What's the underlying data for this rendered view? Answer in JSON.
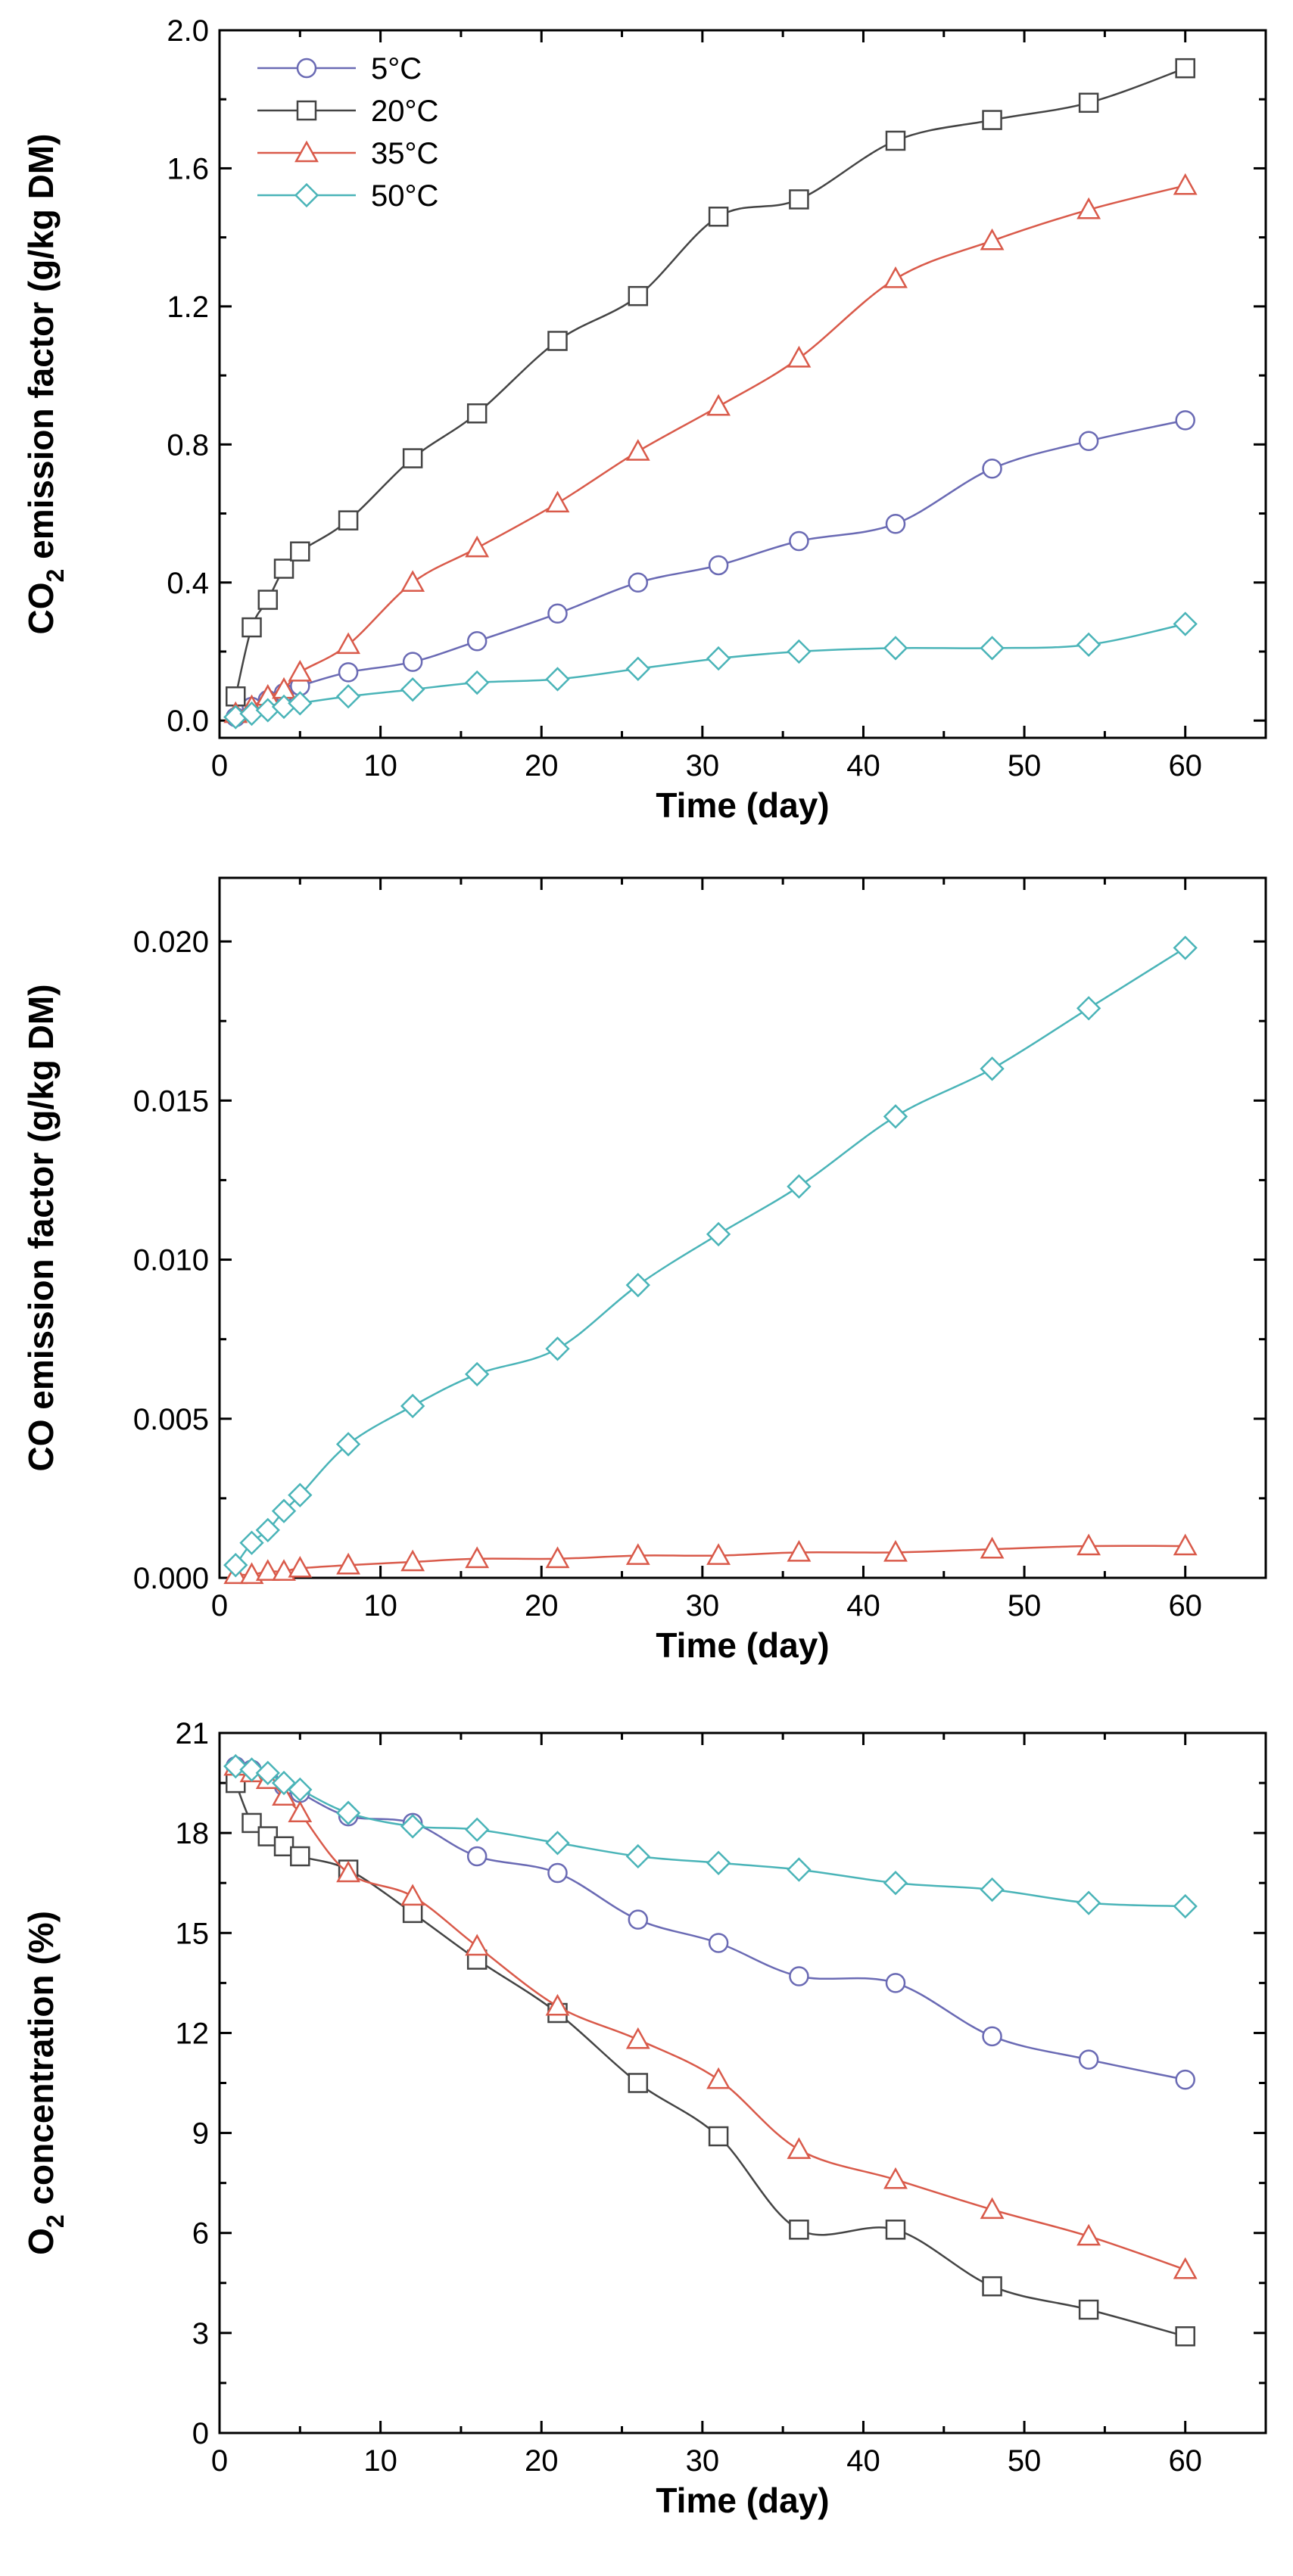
{
  "colors": {
    "5C": "#6a6ab4",
    "20C": "#444444",
    "35C": "#d95a4a",
    "50C": "#4ab4b8"
  },
  "chart_data": [
    {
      "type": "line",
      "xlabel": "Time (day)",
      "ylabel": "CO2 emission factor (g/kg DM)",
      "xlim": [
        0,
        65
      ],
      "ylim": [
        -0.05,
        2.0
      ],
      "xticks": [
        0,
        10,
        20,
        30,
        40,
        50,
        60
      ],
      "yticks": [
        0.0,
        0.4,
        0.8,
        1.2,
        1.6,
        2.0
      ],
      "ytick_labels": [
        "0.0",
        "0.4",
        "0.8",
        "1.2",
        "1.6",
        "2.0"
      ],
      "legend_position": "top-left",
      "series": [
        {
          "name": "5°C",
          "color_key": "5C",
          "marker": "circle",
          "x": [
            1,
            2,
            3,
            4,
            5,
            8,
            12,
            16,
            21,
            26,
            31,
            36,
            42,
            48,
            54,
            60
          ],
          "y": [
            0.01,
            0.04,
            0.06,
            0.08,
            0.1,
            0.14,
            0.17,
            0.23,
            0.31,
            0.4,
            0.45,
            0.52,
            0.57,
            0.73,
            0.81,
            0.87
          ]
        },
        {
          "name": "20°C",
          "color_key": "20C",
          "marker": "square",
          "x": [
            1,
            2,
            3,
            4,
            5,
            8,
            12,
            16,
            21,
            26,
            31,
            36,
            42,
            48,
            54,
            60
          ],
          "y": [
            0.07,
            0.27,
            0.35,
            0.44,
            0.49,
            0.58,
            0.76,
            0.89,
            1.1,
            1.23,
            1.46,
            1.51,
            1.68,
            1.74,
            1.79,
            1.89
          ]
        },
        {
          "name": "35°C",
          "color_key": "35C",
          "marker": "triangle",
          "x": [
            1,
            2,
            3,
            4,
            5,
            8,
            12,
            16,
            21,
            26,
            31,
            36,
            42,
            48,
            54,
            60
          ],
          "y": [
            0.02,
            0.04,
            0.07,
            0.09,
            0.14,
            0.22,
            0.4,
            0.5,
            0.63,
            0.78,
            0.91,
            1.05,
            1.28,
            1.39,
            1.48,
            1.55
          ]
        },
        {
          "name": "50°C",
          "color_key": "50C",
          "marker": "diamond",
          "x": [
            1,
            2,
            3,
            4,
            5,
            8,
            12,
            16,
            21,
            26,
            31,
            36,
            42,
            48,
            54,
            60
          ],
          "y": [
            0.01,
            0.02,
            0.03,
            0.04,
            0.05,
            0.07,
            0.09,
            0.11,
            0.12,
            0.15,
            0.18,
            0.2,
            0.21,
            0.21,
            0.22,
            0.28
          ]
        }
      ]
    },
    {
      "type": "line",
      "xlabel": "Time (day)",
      "ylabel": "CO emission factor (g/kg DM)",
      "xlim": [
        0,
        65
      ],
      "ylim": [
        0,
        0.022
      ],
      "xticks": [
        0,
        10,
        20,
        30,
        40,
        50,
        60
      ],
      "yticks": [
        0,
        0.005,
        0.01,
        0.015,
        0.02
      ],
      "ytick_labels": [
        "0.000",
        "0.005",
        "0.010",
        "0.015",
        "0.020"
      ],
      "series": [
        {
          "name": "35°C",
          "color_key": "35C",
          "marker": "triangle",
          "x": [
            1,
            2,
            3,
            4,
            5,
            8,
            12,
            16,
            21,
            26,
            31,
            36,
            42,
            48,
            54,
            60
          ],
          "y": [
            0.0001,
            0.0001,
            0.0002,
            0.0002,
            0.0003,
            0.0004,
            0.0005,
            0.0006,
            0.0006,
            0.0007,
            0.0007,
            0.0008,
            0.0008,
            0.0009,
            0.001,
            0.001
          ]
        },
        {
          "name": "50°C",
          "color_key": "50C",
          "marker": "diamond",
          "x": [
            1,
            2,
            3,
            4,
            5,
            8,
            12,
            16,
            21,
            26,
            31,
            36,
            42,
            48,
            54,
            60
          ],
          "y": [
            0.0004,
            0.0011,
            0.0015,
            0.0021,
            0.0026,
            0.0042,
            0.0054,
            0.0064,
            0.0072,
            0.0092,
            0.0108,
            0.0123,
            0.0145,
            0.016,
            0.0179,
            0.0198
          ]
        }
      ]
    },
    {
      "type": "line",
      "xlabel": "Time (day)",
      "ylabel": "O2 concentration (%)",
      "xlim": [
        0,
        65
      ],
      "ylim": [
        0,
        21
      ],
      "xticks": [
        0,
        10,
        20,
        30,
        40,
        50,
        60
      ],
      "yticks": [
        0,
        3,
        6,
        9,
        12,
        15,
        18,
        21
      ],
      "ytick_labels": [
        "0",
        "3",
        "6",
        "9",
        "12",
        "15",
        "18",
        "21"
      ],
      "series": [
        {
          "name": "5°C",
          "color_key": "5C",
          "marker": "circle",
          "x": [
            1,
            2,
            3,
            4,
            5,
            8,
            12,
            16,
            21,
            26,
            31,
            36,
            42,
            48,
            54,
            60
          ],
          "y": [
            20.0,
            19.9,
            19.7,
            19.4,
            19.2,
            18.5,
            18.3,
            17.3,
            16.8,
            15.4,
            14.7,
            13.7,
            13.5,
            11.9,
            11.2,
            10.6
          ]
        },
        {
          "name": "20°C",
          "color_key": "20C",
          "marker": "square",
          "x": [
            1,
            2,
            3,
            4,
            5,
            8,
            12,
            16,
            21,
            26,
            31,
            36,
            42,
            48,
            54,
            60
          ],
          "y": [
            19.5,
            18.3,
            17.9,
            17.6,
            17.3,
            16.9,
            15.6,
            14.2,
            12.6,
            10.5,
            8.9,
            6.1,
            6.1,
            4.4,
            3.7,
            2.9
          ]
        },
        {
          "name": "35°C",
          "color_key": "35C",
          "marker": "triangle",
          "x": [
            1,
            2,
            3,
            4,
            5,
            8,
            12,
            16,
            21,
            26,
            31,
            36,
            42,
            48,
            54,
            60
          ],
          "y": [
            20.0,
            19.8,
            19.6,
            19.1,
            18.6,
            16.8,
            16.1,
            14.6,
            12.8,
            11.8,
            10.6,
            8.5,
            7.6,
            6.7,
            5.9,
            4.9
          ]
        },
        {
          "name": "50°C",
          "color_key": "50C",
          "marker": "diamond",
          "x": [
            1,
            2,
            3,
            4,
            5,
            8,
            12,
            16,
            21,
            26,
            31,
            36,
            42,
            48,
            54,
            60
          ],
          "y": [
            20.0,
            19.9,
            19.8,
            19.5,
            19.3,
            18.6,
            18.2,
            18.1,
            17.7,
            17.3,
            17.1,
            16.9,
            16.5,
            16.3,
            15.9,
            15.8
          ]
        }
      ]
    }
  ]
}
